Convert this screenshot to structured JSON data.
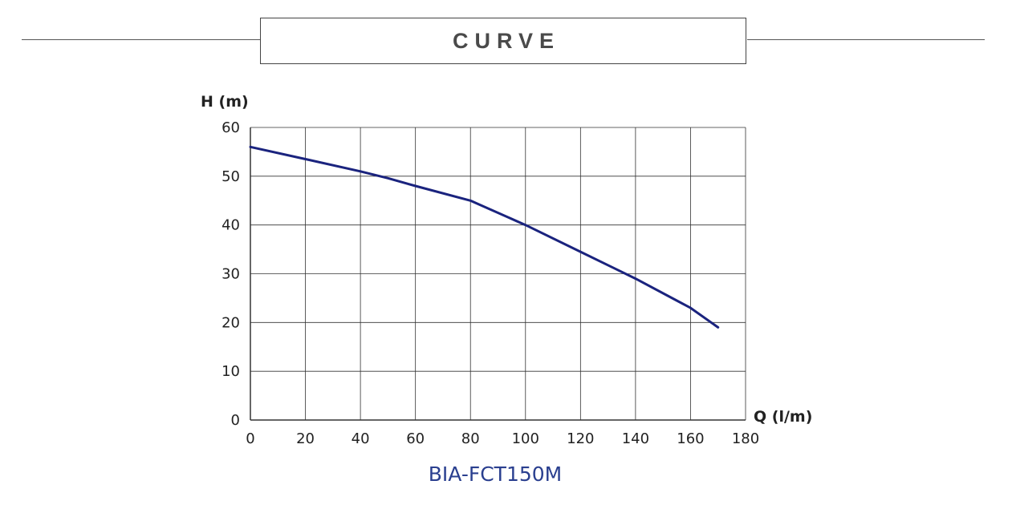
{
  "header": {
    "title": "CURVE"
  },
  "chart_data": {
    "type": "line",
    "title": "",
    "xlabel": "Q (l/m)",
    "ylabel": "H (m)",
    "xlim": [
      0,
      180
    ],
    "ylim": [
      0,
      60
    ],
    "x_ticks": [
      0,
      20,
      40,
      60,
      80,
      100,
      120,
      140,
      160,
      180
    ],
    "y_ticks": [
      0,
      10,
      20,
      30,
      40,
      50,
      60
    ],
    "x_tick_labels": [
      "0",
      "20",
      "40",
      "60",
      "80",
      "100",
      "120",
      "140",
      "160",
      "180"
    ],
    "y_tick_labels": [
      "0",
      "10",
      "20",
      "30",
      "40",
      "50",
      "60"
    ],
    "grid": true,
    "series": [
      {
        "name": "BIA-FCT150M",
        "color": "#1a237e",
        "x": [
          0,
          20,
          40,
          50,
          60,
          80,
          100,
          120,
          140,
          155,
          160,
          170
        ],
        "y": [
          56,
          53.5,
          51,
          49.6,
          48,
          45,
          40,
          34.5,
          29,
          24.5,
          23,
          19
        ]
      }
    ],
    "model_label": "BIA-FCT150M",
    "colors": {
      "line": "#1a237e",
      "model_label": "#2a3f8f",
      "grid": "#333333"
    }
  }
}
